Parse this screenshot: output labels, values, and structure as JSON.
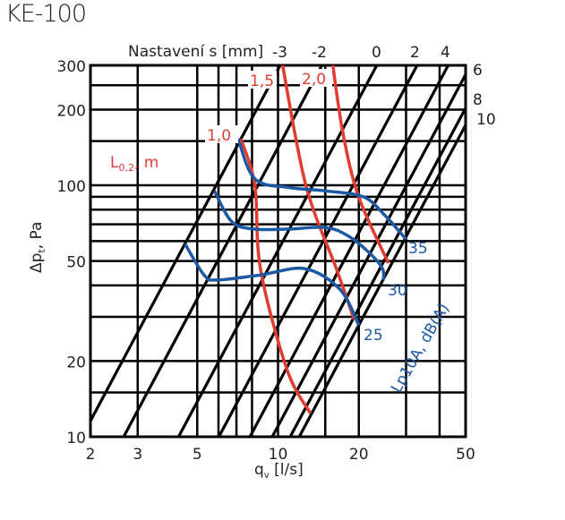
{
  "chart_data": {
    "type": "line",
    "title": "KE-100",
    "xlabel": {
      "main": "q",
      "sub": "v",
      "rest": " [l/s]"
    },
    "ylabel": {
      "main": "Δp",
      "sub": "t",
      "rest": ", Pa"
    },
    "x_scale": "log",
    "y_scale": "log",
    "xlim": [
      2,
      50
    ],
    "ylim": [
      10,
      300
    ],
    "x_ticks": [
      "2",
      "3",
      "5",
      "10",
      "20",
      "50"
    ],
    "y_ticks": [
      "10",
      "20",
      "50",
      "100",
      "200",
      "300"
    ],
    "grid": true,
    "x_grid": [
      2,
      3,
      5,
      6,
      7,
      8,
      10,
      15,
      20,
      30,
      40,
      50
    ],
    "y_grid": [
      10,
      15,
      20,
      30,
      40,
      50,
      60,
      70,
      80,
      90,
      100,
      150,
      200,
      250,
      300
    ],
    "setting_lines": {
      "title": "Nastavení s [mm]",
      "law": "dp = k * q^2",
      "series": [
        {
          "name": "-3",
          "q_at_10Pa": 1.86
        },
        {
          "name": "-2",
          "q_at_10Pa": 2.66
        },
        {
          "name": "0",
          "q_at_10Pa": 4.26
        },
        {
          "name": "2",
          "q_at_10Pa": 6.02
        },
        {
          "name": "4",
          "q_at_10Pa": 7.86
        },
        {
          "name": "6",
          "q_at_10Pa": 9.52
        },
        {
          "name": "8",
          "q_at_10Pa": 11.1
        },
        {
          "name": "10",
          "q_at_10Pa": 12.0
        }
      ]
    },
    "throw_curves": {
      "legend": {
        "main": "L",
        "sub": "0,2",
        "rest": ", m"
      },
      "color": "#e23b32",
      "series": [
        {
          "name": "1,0",
          "points": [
            [
              7.27,
              153
            ],
            [
              8.2,
              100
            ],
            [
              8.6,
              46.6
            ],
            [
              10.8,
              18.5
            ],
            [
              13.2,
              12.4
            ]
          ]
        },
        {
          "name": "1,5",
          "points": [
            [
              10.4,
              300
            ],
            [
              12.7,
              100
            ],
            [
              16.5,
              46.6
            ],
            [
              19.2,
              29.3
            ]
          ]
        },
        {
          "name": "2,0",
          "points": [
            [
              16.0,
              300
            ],
            [
              17.5,
              159
            ],
            [
              20.0,
              89.6
            ],
            [
              25.8,
              49
            ]
          ]
        }
      ]
    },
    "noise_curves": {
      "legend": "Lp10A, dB(A)",
      "color": "#1d59a3",
      "series": [
        {
          "name": "35",
          "points": [
            [
              7.1,
              153
            ],
            [
              8.2,
              106
            ],
            [
              11.0,
              98
            ],
            [
              15,
              95
            ],
            [
              20.8,
              90
            ],
            [
              25,
              76
            ],
            [
              30,
              61
            ]
          ]
        },
        {
          "name": "30",
          "points": [
            [
              5.8,
              95
            ],
            [
              6.7,
              72
            ],
            [
              8.1,
              67
            ],
            [
              11,
              67
            ],
            [
              15,
              68
            ],
            [
              18.2,
              63
            ],
            [
              22,
              53.6
            ],
            [
              24.5,
              46.6
            ],
            [
              24.7,
              42
            ]
          ]
        },
        {
          "name": "25",
          "points": [
            [
              4.5,
              58.5
            ],
            [
              5.3,
              44
            ],
            [
              5.9,
              42
            ],
            [
              8.6,
              44
            ],
            [
              12.6,
              46.6
            ],
            [
              17.0,
              38.6
            ],
            [
              20,
              27.8
            ]
          ]
        }
      ]
    }
  }
}
